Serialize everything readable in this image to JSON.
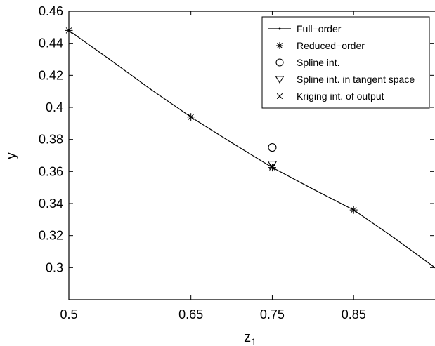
{
  "chart_data": {
    "type": "line",
    "xlabel": "z",
    "xlabel_subscript": "1",
    "ylabel": "y",
    "xlim": [
      0.5,
      0.95
    ],
    "ylim": [
      0.28,
      0.46
    ],
    "x_ticks": [
      0.5,
      0.65,
      0.75,
      0.85
    ],
    "x_tick_labels": [
      "0.5",
      "0.65",
      "0.75",
      "0.85"
    ],
    "y_ticks": [
      0.3,
      0.32,
      0.34,
      0.36,
      0.38,
      0.4,
      0.42,
      0.44,
      0.46
    ],
    "y_tick_labels": [
      "0.3",
      "0.32",
      "0.34",
      "0.36",
      "0.38",
      "0.4",
      "0.42",
      "0.44",
      "0.46"
    ],
    "grid": false,
    "legend_position": "top-right",
    "series": [
      {
        "name": "Full−order",
        "style": "line",
        "x": [
          0.5,
          0.55,
          0.6,
          0.65,
          0.7,
          0.75,
          0.8,
          0.85,
          0.9,
          0.95
        ],
        "y": [
          0.448,
          0.43,
          0.4115,
          0.394,
          0.378,
          0.3625,
          0.349,
          0.336,
          0.3185,
          0.3
        ]
      },
      {
        "name": "Reduced−order",
        "style": "asterisk",
        "x": [
          0.5,
          0.65,
          0.75,
          0.85
        ],
        "y": [
          0.448,
          0.394,
          0.3625,
          0.336
        ]
      },
      {
        "name": "Spline int.",
        "style": "circle",
        "x": [
          0.75
        ],
        "y": [
          0.375
        ]
      },
      {
        "name": "Spline int. in tangent space",
        "style": "triangle-down",
        "x": [
          0.75
        ],
        "y": [
          0.3645
        ]
      },
      {
        "name": "Kriging int. of output",
        "style": "cross",
        "x": [
          0.75
        ],
        "y": [
          0.3632
        ]
      }
    ]
  }
}
